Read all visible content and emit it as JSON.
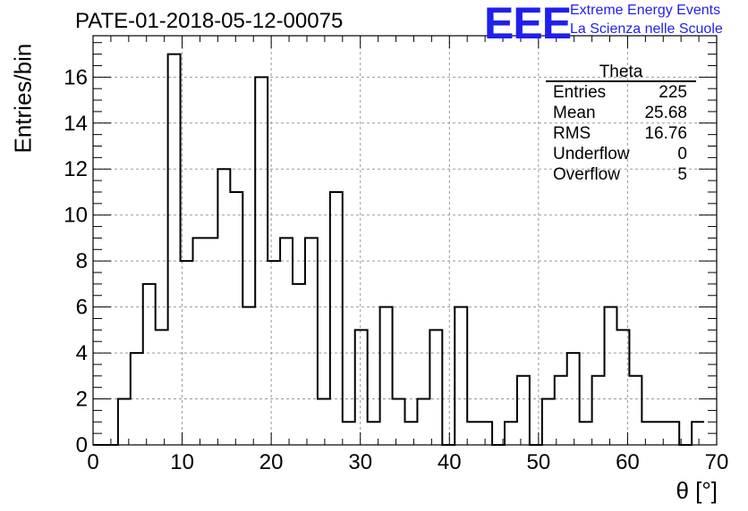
{
  "header": {
    "title": "PATE-01-2018-05-12-00075"
  },
  "logo": {
    "text": "EEE",
    "line1": "Extreme Energy Events",
    "line2": "La Scienza nelle Scuole",
    "color": "#1f1ff0"
  },
  "stats": {
    "title": "Theta",
    "rows": [
      {
        "label": "Entries",
        "value": "225"
      },
      {
        "label": "Mean",
        "value": "25.68"
      },
      {
        "label": "RMS",
        "value": "16.76"
      },
      {
        "label": "Underflow",
        "value": "0"
      },
      {
        "label": "Overflow",
        "value": "5"
      }
    ]
  },
  "chart_data": {
    "type": "bar",
    "histogram": true,
    "title": "PATE-01-2018-05-12-00075",
    "xlabel": "θ [°]",
    "ylabel": "Entries/bin",
    "xlim": [
      0,
      70
    ],
    "ylim": [
      0,
      17.8
    ],
    "bin_width": 1.4,
    "bin_edges_start": 0,
    "values": [
      0,
      0,
      2,
      4,
      7,
      5,
      17,
      8,
      9,
      9,
      12,
      11,
      6,
      16,
      8,
      9,
      7,
      9,
      2,
      11,
      1,
      5,
      1,
      6,
      2,
      1,
      2,
      5,
      0,
      6,
      1,
      1,
      0,
      1,
      3,
      0,
      2,
      3,
      4,
      1,
      3,
      6,
      5,
      3,
      1,
      1,
      1,
      0,
      1
    ],
    "xticks": [
      "0",
      "10",
      "20",
      "30",
      "40",
      "50",
      "60",
      "70"
    ],
    "yticks": [
      "0",
      "2",
      "4",
      "6",
      "8",
      "10",
      "12",
      "14",
      "16"
    ],
    "grid": true,
    "line_color": "#000000"
  }
}
